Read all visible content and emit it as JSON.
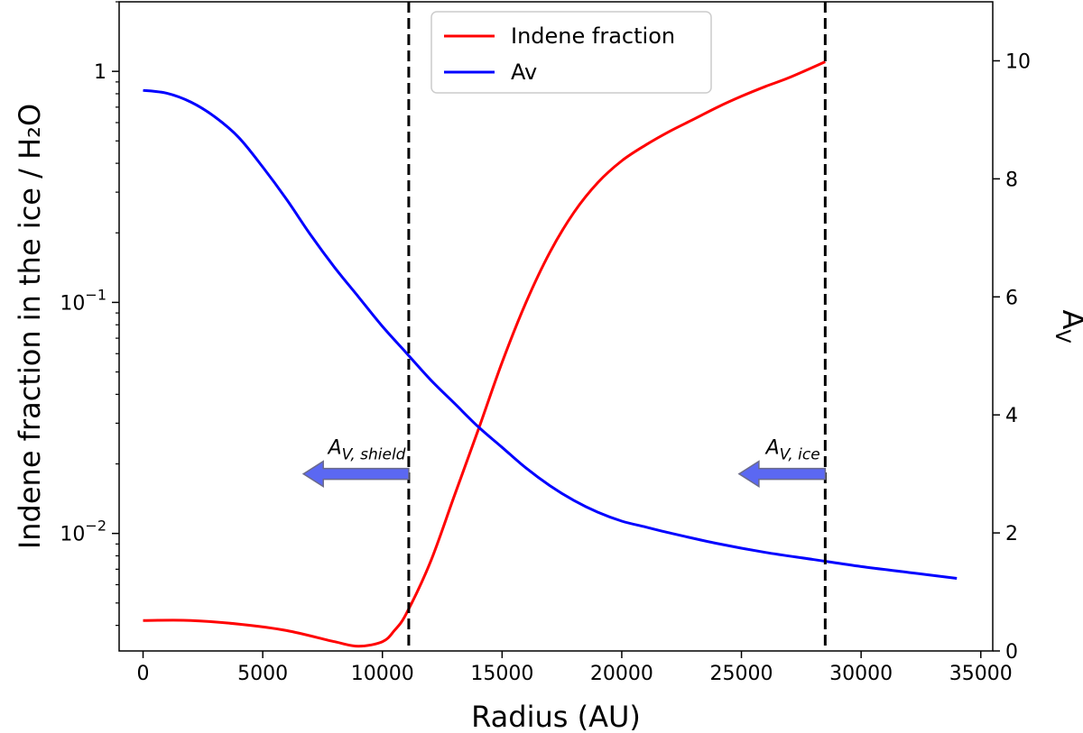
{
  "chart_data": {
    "type": "line",
    "xlabel": "Radius (AU)",
    "ylabel_left": "Indene fraction in the ice / H₂O",
    "ylabel_right": "A",
    "ylabel_right_sub": "V",
    "x_range": [
      -1000,
      35500
    ],
    "x_ticks": [
      0,
      5000,
      10000,
      15000,
      20000,
      25000,
      30000,
      35000
    ],
    "x_tick_labels": [
      "0",
      "5000",
      "10000",
      "15000",
      "20000",
      "25000",
      "30000",
      "35000"
    ],
    "yleft_scale": "log",
    "yleft_range": [
      0.0031,
      2.0
    ],
    "yleft_ticks": [
      0.01,
      0.1,
      1
    ],
    "yleft_tick_labels": [
      {
        "base": "10",
        "exp": "−2"
      },
      {
        "base": "10",
        "exp": "−1"
      },
      {
        "base": "1",
        "exp": ""
      }
    ],
    "yright_range": [
      0,
      11
    ],
    "yright_ticks": [
      0,
      2,
      4,
      6,
      8,
      10
    ],
    "yright_tick_labels": [
      "0",
      "2",
      "4",
      "6",
      "8",
      "10"
    ],
    "grid": false,
    "legend_position": "top-center",
    "series": [
      {
        "name": "Indene fraction",
        "color": "#ff0000",
        "axis": "left",
        "x": [
          0,
          2000,
          4000,
          6000,
          8000,
          9000,
          10000,
          10500,
          11000,
          12000,
          13000,
          14000,
          15000,
          16000,
          17000,
          18000,
          19000,
          20000,
          21000,
          22000,
          23000,
          24000,
          25000,
          26000,
          27000,
          28500
        ],
        "y": [
          0.0042,
          0.0042,
          0.00405,
          0.0038,
          0.0034,
          0.00325,
          0.0034,
          0.0038,
          0.0045,
          0.0075,
          0.0145,
          0.028,
          0.055,
          0.1,
          0.165,
          0.245,
          0.33,
          0.41,
          0.48,
          0.55,
          0.62,
          0.7,
          0.78,
          0.86,
          0.94,
          1.1
        ]
      },
      {
        "name": "Av",
        "color": "#0000ff",
        "axis": "right",
        "x": [
          0,
          1000,
          2000,
          3000,
          4000,
          5000,
          6000,
          7000,
          8000,
          9000,
          10000,
          11000,
          12000,
          13000,
          14000,
          15000,
          16000,
          17000,
          18000,
          19000,
          20000,
          21000,
          22000,
          24000,
          26000,
          28000,
          30000,
          32000,
          34000
        ],
        "y": [
          9.5,
          9.45,
          9.3,
          9.05,
          8.7,
          8.2,
          7.65,
          7.05,
          6.5,
          6.0,
          5.5,
          5.05,
          4.6,
          4.2,
          3.8,
          3.45,
          3.1,
          2.8,
          2.55,
          2.35,
          2.2,
          2.1,
          2.0,
          1.82,
          1.67,
          1.55,
          1.43,
          1.33,
          1.23
        ]
      }
    ],
    "vlines": [
      11100,
      28500
    ],
    "annotations": [
      {
        "text_main": "A",
        "text_sub": "V, shield",
        "arrow_x_from": 11100,
        "arrow_x_to": 6700,
        "arrow_y_right": 3.0
      },
      {
        "text_main": "A",
        "text_sub": "V, ice",
        "arrow_x_from": 28500,
        "arrow_x_to": 24900,
        "arrow_y_right": 3.0
      }
    ],
    "arrow_color": "#5b68f2"
  }
}
